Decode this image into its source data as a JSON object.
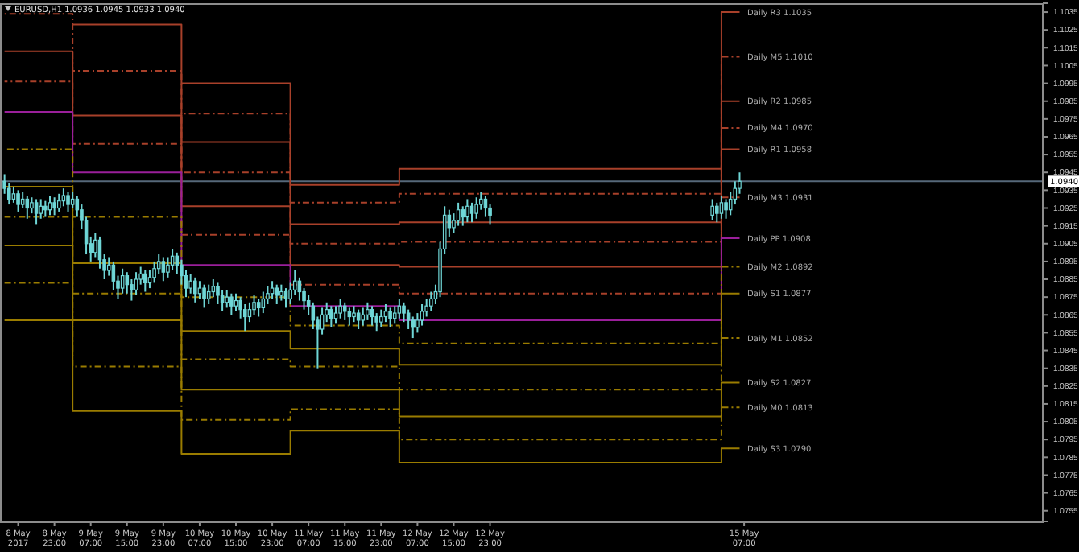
{
  "chart_data": {
    "type": "candlestick",
    "title": "EURUSD,H1  1.0936 1.0945 1.0933 1.0940",
    "color": "#6fd6d6",
    "x": [
      "2017-05-08T12:00",
      "2017-05-08T13:00",
      "2017-05-08T14:00",
      "2017-05-08T15:00",
      "2017-05-08T16:00",
      "2017-05-08T17:00",
      "2017-05-08T18:00",
      "2017-05-08T19:00",
      "2017-05-08T20:00",
      "2017-05-08T21:00",
      "2017-05-08T22:00",
      "2017-05-08T23:00",
      "2017-05-09T00:00",
      "2017-05-09T01:00",
      "2017-05-09T02:00",
      "2017-05-09T03:00",
      "2017-05-09T04:00",
      "2017-05-09T05:00",
      "2017-05-09T06:00",
      "2017-05-09T07:00",
      "2017-05-09T08:00",
      "2017-05-09T09:00",
      "2017-05-09T10:00",
      "2017-05-09T11:00",
      "2017-05-09T12:00",
      "2017-05-09T13:00",
      "2017-05-09T14:00",
      "2017-05-09T15:00",
      "2017-05-09T16:00",
      "2017-05-09T17:00",
      "2017-05-09T18:00",
      "2017-05-09T19:00",
      "2017-05-09T20:00",
      "2017-05-09T21:00",
      "2017-05-09T22:00",
      "2017-05-09T23:00",
      "2017-05-10T00:00",
      "2017-05-10T01:00",
      "2017-05-10T02:00",
      "2017-05-10T03:00",
      "2017-05-10T04:00",
      "2017-05-10T05:00",
      "2017-05-10T06:00",
      "2017-05-10T07:00",
      "2017-05-10T08:00",
      "2017-05-10T09:00",
      "2017-05-10T10:00",
      "2017-05-10T11:00",
      "2017-05-10T12:00",
      "2017-05-10T13:00",
      "2017-05-10T14:00",
      "2017-05-10T15:00",
      "2017-05-10T16:00",
      "2017-05-10T17:00",
      "2017-05-10T18:00",
      "2017-05-10T19:00",
      "2017-05-10T20:00",
      "2017-05-10T21:00",
      "2017-05-10T22:00",
      "2017-05-10T23:00",
      "2017-05-11T00:00",
      "2017-05-11T01:00",
      "2017-05-11T02:00",
      "2017-05-11T03:00",
      "2017-05-11T04:00",
      "2017-05-11T05:00",
      "2017-05-11T06:00",
      "2017-05-11T07:00",
      "2017-05-11T08:00",
      "2017-05-11T09:00",
      "2017-05-11T10:00",
      "2017-05-11T11:00",
      "2017-05-11T12:00",
      "2017-05-11T13:00",
      "2017-05-11T14:00",
      "2017-05-11T15:00",
      "2017-05-11T16:00",
      "2017-05-11T17:00",
      "2017-05-11T18:00",
      "2017-05-11T19:00",
      "2017-05-11T20:00",
      "2017-05-11T21:00",
      "2017-05-11T22:00",
      "2017-05-11T23:00",
      "2017-05-12T00:00",
      "2017-05-12T01:00",
      "2017-05-12T02:00",
      "2017-05-12T03:00",
      "2017-05-12T04:00",
      "2017-05-12T05:00",
      "2017-05-12T06:00",
      "2017-05-12T07:00",
      "2017-05-12T08:00",
      "2017-05-12T09:00",
      "2017-05-12T10:00",
      "2017-05-12T11:00",
      "2017-05-12T12:00",
      "2017-05-12T13:00",
      "2017-05-12T14:00",
      "2017-05-12T15:00",
      "2017-05-12T16:00",
      "2017-05-12T17:00",
      "2017-05-12T18:00",
      "2017-05-12T19:00",
      "2017-05-12T20:00",
      "2017-05-12T21:00",
      "2017-05-12T22:00",
      "2017-05-12T23:00",
      "2017-05-15T00:00",
      "2017-05-15T01:00",
      "2017-05-15T02:00",
      "2017-05-15T03:00",
      "2017-05-15T04:00",
      "2017-05-15T05:00",
      "2017-05-15T06:00"
    ],
    "ohlc": [
      [
        1.094,
        1.0944,
        1.0933,
        1.0936
      ],
      [
        1.0936,
        1.0939,
        1.0927,
        1.093
      ],
      [
        1.093,
        1.0937,
        1.0928,
        1.0933
      ],
      [
        1.0933,
        1.0935,
        1.0923,
        1.0927
      ],
      [
        1.0927,
        1.0934,
        1.0925,
        1.093
      ],
      [
        1.093,
        1.0932,
        1.0919,
        1.0925
      ],
      [
        1.0925,
        1.0931,
        1.0922,
        1.0928
      ],
      [
        1.0928,
        1.093,
        1.0916,
        1.0922
      ],
      [
        1.0922,
        1.093,
        1.0919,
        1.0926
      ],
      [
        1.0926,
        1.0929,
        1.092,
        1.0924
      ],
      [
        1.0924,
        1.0932,
        1.0921,
        1.0928
      ],
      [
        1.0928,
        1.0931,
        1.0921,
        1.0925
      ],
      [
        1.0925,
        1.0933,
        1.0923,
        1.0929
      ],
      [
        1.0929,
        1.0936,
        1.0926,
        1.0932
      ],
      [
        1.0932,
        1.0934,
        1.0923,
        1.0927
      ],
      [
        1.0927,
        1.0934,
        1.0925,
        1.093
      ],
      [
        1.093,
        1.0932,
        1.092,
        1.0924
      ],
      [
        1.0924,
        1.0927,
        1.0913,
        1.0918
      ],
      [
        1.0918,
        1.092,
        1.0899,
        1.0905
      ],
      [
        1.0905,
        1.0909,
        1.0895,
        1.09
      ],
      [
        1.09,
        1.0911,
        1.0897,
        1.0907
      ],
      [
        1.0907,
        1.0909,
        1.0891,
        1.0896
      ],
      [
        1.0896,
        1.0899,
        1.0885,
        1.089
      ],
      [
        1.089,
        1.0897,
        1.0887,
        1.0893
      ],
      [
        1.0893,
        1.0895,
        1.0879,
        1.0884
      ],
      [
        1.0884,
        1.0887,
        1.0874,
        1.088
      ],
      [
        1.088,
        1.0891,
        1.0877,
        1.0887
      ],
      [
        1.0887,
        1.0889,
        1.0877,
        1.0882
      ],
      [
        1.0882,
        1.0885,
        1.0873,
        1.0879
      ],
      [
        1.0879,
        1.0889,
        1.0876,
        1.0885
      ],
      [
        1.0885,
        1.0892,
        1.0882,
        1.0888
      ],
      [
        1.0888,
        1.089,
        1.0878,
        1.0883
      ],
      [
        1.0883,
        1.089,
        1.088,
        1.0886
      ],
      [
        1.0886,
        1.0895,
        1.0883,
        1.0891
      ],
      [
        1.0891,
        1.0899,
        1.0888,
        1.0895
      ],
      [
        1.0895,
        1.0897,
        1.0884,
        1.0889
      ],
      [
        1.0889,
        1.0897,
        1.0886,
        1.0893
      ],
      [
        1.0893,
        1.0902,
        1.089,
        1.0898
      ],
      [
        1.0898,
        1.09,
        1.0888,
        1.0893
      ],
      [
        1.0893,
        1.0896,
        1.0882,
        1.0887
      ],
      [
        1.0887,
        1.089,
        1.0875,
        1.088
      ],
      [
        1.088,
        1.0888,
        1.0877,
        1.0884
      ],
      [
        1.0884,
        1.0886,
        1.0872,
        1.0877
      ],
      [
        1.0877,
        1.0884,
        1.0874,
        1.088
      ],
      [
        1.088,
        1.0882,
        1.0869,
        1.0874
      ],
      [
        1.0874,
        1.0882,
        1.0871,
        1.0878
      ],
      [
        1.0878,
        1.0885,
        1.0875,
        1.0881
      ],
      [
        1.0881,
        1.0883,
        1.0871,
        1.0876
      ],
      [
        1.0876,
        1.0879,
        1.0867,
        1.0872
      ],
      [
        1.0872,
        1.0879,
        1.0869,
        1.0875
      ],
      [
        1.0875,
        1.0877,
        1.0865,
        1.087
      ],
      [
        1.087,
        1.0877,
        1.0867,
        1.0873
      ],
      [
        1.0873,
        1.0875,
        1.0863,
        1.0868
      ],
      [
        1.0868,
        1.0871,
        1.0856,
        1.0864
      ],
      [
        1.0864,
        1.0872,
        1.0861,
        1.0868
      ],
      [
        1.0868,
        1.0876,
        1.0865,
        1.0872
      ],
      [
        1.0872,
        1.0874,
        1.0864,
        1.0869
      ],
      [
        1.0869,
        1.0878,
        1.0866,
        1.0874
      ],
      [
        1.0874,
        1.0881,
        1.0871,
        1.0877
      ],
      [
        1.0877,
        1.0884,
        1.0874,
        1.088
      ],
      [
        1.088,
        1.0882,
        1.0871,
        1.0876
      ],
      [
        1.0876,
        1.0882,
        1.0873,
        1.0878
      ],
      [
        1.0878,
        1.088,
        1.0869,
        1.0874
      ],
      [
        1.0874,
        1.0883,
        1.0871,
        1.0879
      ],
      [
        1.0879,
        1.089,
        1.0876,
        1.0884
      ],
      [
        1.0884,
        1.0886,
        1.0873,
        1.0878
      ],
      [
        1.0878,
        1.088,
        1.0868,
        1.0873
      ],
      [
        1.0873,
        1.0876,
        1.0865,
        1.087
      ],
      [
        1.087,
        1.0872,
        1.0857,
        1.0862
      ],
      [
        1.0862,
        1.0864,
        1.0835,
        1.0857
      ],
      [
        1.0857,
        1.0869,
        1.0854,
        1.0865
      ],
      [
        1.0865,
        1.0872,
        1.0861,
        1.0868
      ],
      [
        1.0868,
        1.087,
        1.0858,
        1.0863
      ],
      [
        1.0863,
        1.087,
        1.086,
        1.0866
      ],
      [
        1.0866,
        1.0874,
        1.0863,
        1.087
      ],
      [
        1.087,
        1.0872,
        1.0862,
        1.0867
      ],
      [
        1.0867,
        1.0869,
        1.0859,
        1.0864
      ],
      [
        1.0864,
        1.087,
        1.0861,
        1.0866
      ],
      [
        1.0866,
        1.0868,
        1.0857,
        1.0862
      ],
      [
        1.0862,
        1.0869,
        1.0859,
        1.0865
      ],
      [
        1.0865,
        1.0872,
        1.0862,
        1.0868
      ],
      [
        1.0868,
        1.087,
        1.0859,
        1.0864
      ],
      [
        1.0864,
        1.0866,
        1.0856,
        1.0861
      ],
      [
        1.0861,
        1.0868,
        1.0858,
        1.0864
      ],
      [
        1.0864,
        1.0871,
        1.0861,
        1.0867
      ],
      [
        1.0867,
        1.0869,
        1.0858,
        1.0863
      ],
      [
        1.0863,
        1.087,
        1.086,
        1.0866
      ],
      [
        1.0866,
        1.0874,
        1.0863,
        1.087
      ],
      [
        1.087,
        1.0872,
        1.0861,
        1.0866
      ],
      [
        1.0866,
        1.0868,
        1.0857,
        1.0862
      ],
      [
        1.0862,
        1.0864,
        1.0852,
        1.0858
      ],
      [
        1.0858,
        1.0866,
        1.0855,
        1.0862
      ],
      [
        1.0862,
        1.0871,
        1.0859,
        1.0867
      ],
      [
        1.0867,
        1.0874,
        1.0864,
        1.087
      ],
      [
        1.087,
        1.0878,
        1.0867,
        1.0874
      ],
      [
        1.0874,
        1.0882,
        1.0871,
        1.0878
      ],
      [
        1.0878,
        1.0906,
        1.0875,
        1.0902
      ],
      [
        1.0902,
        1.0926,
        1.0899,
        1.0921
      ],
      [
        1.0921,
        1.0924,
        1.0909,
        1.0914
      ],
      [
        1.0914,
        1.0922,
        1.0911,
        1.0918
      ],
      [
        1.0918,
        1.0928,
        1.0915,
        1.0924
      ],
      [
        1.0924,
        1.0926,
        1.0915,
        1.092
      ],
      [
        1.092,
        1.093,
        1.0917,
        1.0926
      ],
      [
        1.0926,
        1.0928,
        1.0917,
        1.0922
      ],
      [
        1.0922,
        1.0931,
        1.0919,
        1.0927
      ],
      [
        1.0927,
        1.0934,
        1.0924,
        1.093
      ],
      [
        1.093,
        1.0932,
        1.092,
        1.0925
      ],
      [
        1.0925,
        1.0927,
        1.0916,
        1.0921
      ],
      [
        1.0921,
        1.093,
        1.0918,
        1.0926
      ],
      [
        1.0926,
        1.0928,
        1.0917,
        1.0922
      ],
      [
        1.0922,
        1.0932,
        1.0919,
        1.0928
      ],
      [
        1.0928,
        1.093,
        1.0919,
        1.0924
      ],
      [
        1.0924,
        1.0934,
        1.0921,
        1.093
      ],
      [
        1.093,
        1.094,
        1.0927,
        1.0936
      ],
      [
        1.0936,
        1.0945,
        1.0933,
        1.094
      ]
    ],
    "series": [
      {
        "type": "step",
        "x": [
          "2017-05-10T03:00",
          "2017-05-11T03:00",
          "2017-05-12T03:00",
          "2017-05-15T02:00",
          "2017-05-15T06:00"
        ],
        "values": [
          1.0995,
          1.0938,
          1.0947,
          1.1035,
          1.1035
        ],
        "color": "#a8402a",
        "line_style": "solid"
      },
      {
        "type": "step",
        "x": [
          "2017-05-10T03:00",
          "2017-05-11T03:00",
          "2017-05-12T03:00",
          "2017-05-15T02:00",
          "2017-05-15T06:00"
        ],
        "values": [
          1.0978,
          1.0928,
          1.0933,
          1.101,
          1.101
        ],
        "color": "#a8402a",
        "line_style": "dashed"
      },
      {
        "type": "step",
        "x": [
          "2017-05-09T03:00",
          "2017-05-10T03:00",
          "2017-05-11T03:00",
          "2017-05-12T03:00",
          "2017-05-15T02:00",
          "2017-05-15T06:00"
        ],
        "values": [
          1.1028,
          1.0962,
          1.0916,
          1.0917,
          1.0985,
          1.0985
        ],
        "color": "#a8402a",
        "line_style": "solid"
      },
      {
        "type": "step",
        "x": [
          "2017-05-08T12:00",
          "2017-05-09T03:00",
          "2017-05-10T03:00",
          "2017-05-11T03:00",
          "2017-05-12T03:00",
          "2017-05-15T02:00",
          "2017-05-15T06:00"
        ],
        "values": [
          1.1034,
          1.1002,
          1.0945,
          1.0905,
          1.0906,
          1.097,
          1.097
        ],
        "color": "#a8402a",
        "line_style": "dashed"
      },
      {
        "type": "step",
        "x": [
          "2017-05-08T12:00",
          "2017-05-09T03:00",
          "2017-05-10T03:00",
          "2017-05-11T03:00",
          "2017-05-12T03:00",
          "2017-05-15T02:00",
          "2017-05-15T06:00"
        ],
        "values": [
          1.1013,
          1.0977,
          1.0926,
          1.0893,
          1.0892,
          1.0958,
          1.0958
        ],
        "color": "#a8402a",
        "line_style": "solid"
      },
      {
        "type": "step",
        "x": [
          "2017-05-08T12:00",
          "2017-05-09T03:00",
          "2017-05-10T03:00",
          "2017-05-11T03:00",
          "2017-05-12T03:00",
          "2017-05-15T02:00",
          "2017-05-15T06:00"
        ],
        "values": [
          1.0996,
          1.0961,
          1.091,
          1.0882,
          1.0877,
          1.0931,
          1.0931
        ],
        "color": "#a8402a",
        "line_style": "dashed"
      },
      {
        "type": "step",
        "x": [
          "2017-05-08T12:00",
          "2017-05-09T03:00",
          "2017-05-10T03:00",
          "2017-05-11T03:00",
          "2017-05-12T03:00",
          "2017-05-15T02:00",
          "2017-05-15T06:00"
        ],
        "values": [
          1.0979,
          1.0945,
          1.0893,
          1.087,
          1.0862,
          1.0908,
          1.0908
        ],
        "color": "#9a1f9a",
        "line_style": "solid"
      },
      {
        "type": "step",
        "x": [
          "2017-05-08T12:00",
          "2017-05-09T03:00",
          "2017-05-10T03:00",
          "2017-05-11T03:00",
          "2017-05-12T03:00",
          "2017-05-15T02:00",
          "2017-05-15T06:00"
        ],
        "values": [
          1.0958,
          1.092,
          1.0875,
          1.0859,
          1.0849,
          1.0892,
          1.0892
        ],
        "color": "#9a7c00",
        "line_style": "dashed"
      },
      {
        "type": "step",
        "x": [
          "2017-05-08T12:00",
          "2017-05-09T03:00",
          "2017-05-10T03:00",
          "2017-05-11T03:00",
          "2017-05-12T03:00",
          "2017-05-15T02:00",
          "2017-05-15T06:00"
        ],
        "values": [
          1.0937,
          1.0894,
          1.0856,
          1.0846,
          1.0837,
          1.0877,
          1.0877
        ],
        "color": "#9a7c00",
        "line_style": "solid"
      },
      {
        "type": "step",
        "x": [
          "2017-05-08T12:00",
          "2017-05-09T03:00",
          "2017-05-10T03:00",
          "2017-05-11T03:00",
          "2017-05-12T03:00",
          "2017-05-15T02:00",
          "2017-05-15T06:00"
        ],
        "values": [
          1.092,
          1.0877,
          1.084,
          1.0836,
          1.0823,
          1.0852,
          1.0852
        ],
        "color": "#9a7c00",
        "line_style": "dashed"
      },
      {
        "type": "step",
        "x": [
          "2017-05-08T12:00",
          "2017-05-09T03:00",
          "2017-05-10T03:00",
          "2017-05-11T03:00",
          "2017-05-12T03:00",
          "2017-05-15T02:00",
          "2017-05-15T06:00"
        ],
        "values": [
          1.0904,
          1.0862,
          1.0823,
          1.0823,
          1.0808,
          1.0827,
          1.0827
        ],
        "color": "#9a7c00",
        "line_style": "solid"
      },
      {
        "type": "step",
        "x": [
          "2017-05-08T12:00",
          "2017-05-09T03:00",
          "2017-05-10T03:00",
          "2017-05-11T03:00",
          "2017-05-12T03:00",
          "2017-05-15T02:00",
          "2017-05-15T06:00"
        ],
        "values": [
          1.0883,
          1.0836,
          1.0806,
          1.0812,
          1.0795,
          1.0813,
          1.0813
        ],
        "color": "#9a7c00",
        "line_style": "dashed"
      },
      {
        "type": "step",
        "x": [
          "2017-05-08T12:00",
          "2017-05-09T03:00",
          "2017-05-10T03:00",
          "2017-05-11T03:00",
          "2017-05-12T03:00",
          "2017-05-15T02:00",
          "2017-05-15T06:00"
        ],
        "values": [
          1.0862,
          1.0811,
          1.0787,
          1.08,
          1.0782,
          1.079,
          1.079
        ],
        "color": "#9a7c00",
        "line_style": "solid"
      }
    ],
    "xlim": [
      "2017-05-08T11:00",
      "2017-05-18T01:00"
    ],
    "xticks": [
      {
        "value": "2017-05-08T15:00",
        "label": "8 May 2017"
      },
      {
        "value": "2017-05-08T23:00",
        "label": "8 May 23:00"
      },
      {
        "value": "2017-05-09T07:00",
        "label": "9 May 07:00"
      },
      {
        "value": "2017-05-09T15:00",
        "label": "9 May 15:00"
      },
      {
        "value": "2017-05-09T23:00",
        "label": "9 May 23:00"
      },
      {
        "value": "2017-05-10T07:00",
        "label": "10 May 07:00"
      },
      {
        "value": "2017-05-10T15:00",
        "label": "10 May 15:00"
      },
      {
        "value": "2017-05-10T23:00",
        "label": "10 May 23:00"
      },
      {
        "value": "2017-05-11T07:00",
        "label": "11 May 07:00"
      },
      {
        "value": "2017-05-11T15:00",
        "label": "11 May 15:00"
      },
      {
        "value": "2017-05-11T23:00",
        "label": "11 May 23:00"
      },
      {
        "value": "2017-05-12T07:00",
        "label": "12 May 07:00"
      },
      {
        "value": "2017-05-12T15:00",
        "label": "12 May 15:00"
      },
      {
        "value": "2017-05-12T23:00",
        "label": "12 May 23:00"
      },
      {
        "value": "2017-05-15T07:00",
        "label": "15 May 07:00"
      }
    ],
    "ylim": [
      1.0749,
      1.104
    ],
    "yticks": [
      {
        "value": 1.1035,
        "label": "1.1035"
      },
      {
        "value": 1.1025,
        "label": "1.1025"
      },
      {
        "value": 1.1015,
        "label": "1.1015"
      },
      {
        "value": 1.1005,
        "label": "1.1005"
      },
      {
        "value": 1.0995,
        "label": "1.0995"
      },
      {
        "value": 1.0985,
        "label": "1.0985"
      },
      {
        "value": 1.0975,
        "label": "1.0975"
      },
      {
        "value": 1.0965,
        "label": "1.0965"
      },
      {
        "value": 1.0955,
        "label": "1.0955"
      },
      {
        "value": 1.0945,
        "label": "1.0945"
      },
      {
        "value": 1.0935,
        "label": "1.0935"
      },
      {
        "value": 1.0925,
        "label": "1.0925"
      },
      {
        "value": 1.0915,
        "label": "1.0915"
      },
      {
        "value": 1.0905,
        "label": "1.0905"
      },
      {
        "value": 1.0895,
        "label": "1.0895"
      },
      {
        "value": 1.0885,
        "label": "1.0885"
      },
      {
        "value": 1.0875,
        "label": "1.0875"
      },
      {
        "value": 1.0865,
        "label": "1.0865"
      },
      {
        "value": 1.0855,
        "label": "1.0855"
      },
      {
        "value": 1.0845,
        "label": "1.0845"
      },
      {
        "value": 1.0835,
        "label": "1.0835"
      },
      {
        "value": 1.0825,
        "label": "1.0825"
      },
      {
        "value": 1.0815,
        "label": "1.0815"
      },
      {
        "value": 1.0805,
        "label": "1.0805"
      },
      {
        "value": 1.0795,
        "label": "1.0795"
      },
      {
        "value": 1.0785,
        "label": "1.0785"
      },
      {
        "value": 1.0775,
        "label": "1.0775"
      },
      {
        "value": 1.0765,
        "label": "1.0765"
      },
      {
        "value": 1.0755,
        "label": "1.0755"
      }
    ],
    "ref_lines": [
      {
        "axis": "y",
        "value": 1.094,
        "label": "1.0940",
        "color": "#56687a"
      }
    ],
    "annotations": [
      {
        "text": "Daily R3 1.1035",
        "x": "2017-05-15T07:00",
        "y": 1.1035
      },
      {
        "text": "Daily M5 1.1010",
        "x": "2017-05-15T07:00",
        "y": 1.101
      },
      {
        "text": "Daily R2 1.0985",
        "x": "2017-05-15T07:00",
        "y": 1.0985
      },
      {
        "text": "Daily M4 1.0970",
        "x": "2017-05-15T07:00",
        "y": 1.097
      },
      {
        "text": "Daily R1 1.0958",
        "x": "2017-05-15T07:00",
        "y": 1.0958
      },
      {
        "text": "Daily M3 1.0931",
        "x": "2017-05-15T07:00",
        "y": 1.0931
      },
      {
        "text": "Daily PP 1.0908",
        "x": "2017-05-15T07:00",
        "y": 1.0908
      },
      {
        "text": "Daily M2 1.0892",
        "x": "2017-05-15T07:00",
        "y": 1.0892
      },
      {
        "text": "Daily S1 1.0877",
        "x": "2017-05-15T07:00",
        "y": 1.0877
      },
      {
        "text": "Daily M1 1.0852",
        "x": "2017-05-15T07:00",
        "y": 1.0852
      },
      {
        "text": "Daily S2 1.0827",
        "x": "2017-05-15T07:00",
        "y": 1.0827
      },
      {
        "text": "Daily M0 1.0813",
        "x": "2017-05-15T07:00",
        "y": 1.0813
      },
      {
        "text": "Daily S3 1.0790",
        "x": "2017-05-15T07:00",
        "y": 1.079
      }
    ]
  }
}
